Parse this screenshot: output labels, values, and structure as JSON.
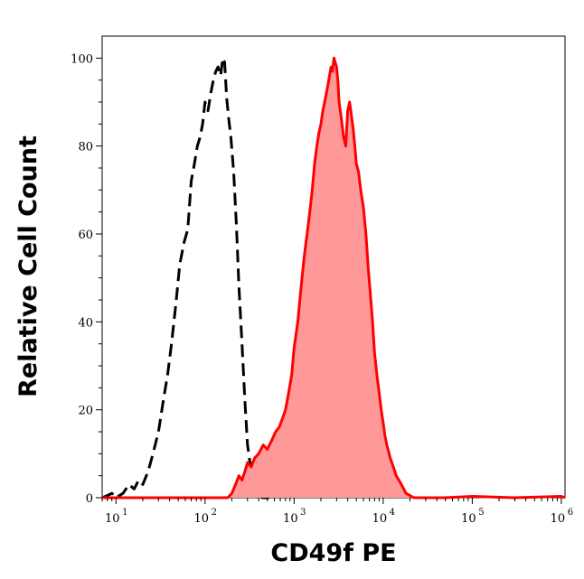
{
  "chart_data": {
    "type": "area",
    "xlabel": "CD49f PE",
    "ylabel": "Relative Cell Count",
    "x_scale": "log",
    "xlim": [
      7,
      1100000
    ],
    "ylim": [
      0,
      105
    ],
    "x_ticks": [
      {
        "value": 10,
        "base": "10",
        "exp": "1"
      },
      {
        "value": 100,
        "base": "10",
        "exp": "2"
      },
      {
        "value": 1000,
        "base": "10",
        "exp": "3"
      },
      {
        "value": 10000,
        "base": "10",
        "exp": "4"
      },
      {
        "value": 100000,
        "base": "10",
        "exp": "5"
      },
      {
        "value": 1000000,
        "base": "10",
        "exp": "6"
      }
    ],
    "y_ticks": [
      {
        "value": 0,
        "label": "0"
      },
      {
        "value": 20,
        "label": "20"
      },
      {
        "value": 40,
        "label": "40"
      },
      {
        "value": 60,
        "label": "60"
      },
      {
        "value": 80,
        "label": "80"
      },
      {
        "value": 100,
        "label": "100"
      }
    ],
    "grid": false,
    "legend": "none",
    "series": [
      {
        "style": "dashed-line",
        "color": "#000000",
        "x": [
          7,
          8,
          9,
          10,
          12,
          14,
          16,
          18,
          20,
          23,
          26,
          30,
          34,
          38,
          42,
          47,
          52,
          58,
          64,
          70,
          76,
          82,
          88,
          94,
          100,
          108,
          116,
          124,
          132,
          140,
          150,
          158,
          166,
          175,
          185,
          195,
          210,
          225,
          240,
          260,
          280,
          300,
          330,
          360,
          400,
          440,
          480,
          550
        ],
        "y": [
          0,
          0.5,
          1,
          0,
          1,
          3,
          2,
          4,
          3,
          6,
          10,
          15,
          22,
          28,
          35,
          44,
          53,
          58,
          61,
          72,
          76,
          80,
          82,
          85,
          90,
          88,
          92,
          95,
          97,
          98,
          96,
          100,
          99,
          91,
          86,
          82,
          74,
          62,
          48,
          35,
          22,
          12,
          6,
          2,
          0.5,
          0,
          0,
          0
        ]
      },
      {
        "style": "filled-area",
        "color": "#ff0000",
        "fill": "#ff9999",
        "x": [
          7,
          100,
          150,
          180,
          200,
          220,
          240,
          260,
          280,
          300,
          330,
          360,
          400,
          450,
          500,
          560,
          620,
          680,
          740,
          800,
          870,
          940,
          1000,
          1100,
          1200,
          1300,
          1400,
          1500,
          1600,
          1700,
          1800,
          1900,
          2000,
          2100,
          2200,
          2300,
          2400,
          2500,
          2600,
          2700,
          2800,
          2900,
          3000,
          3100,
          3200,
          3400,
          3600,
          3800,
          4000,
          4200,
          4400,
          4600,
          4800,
          5000,
          5300,
          5600,
          6000,
          6400,
          6800,
          7200,
          7600,
          8000,
          8500,
          9000,
          9500,
          10000,
          10500,
          11000,
          12000,
          13000,
          14000,
          15000,
          16000,
          17000,
          18000,
          20000,
          22000,
          25000,
          30000,
          50000,
          100000,
          300000,
          1000000,
          1100000
        ],
        "y": [
          0,
          0,
          0,
          0,
          1,
          3,
          5,
          4,
          6,
          8,
          7,
          9,
          10,
          12,
          11,
          13,
          15,
          16,
          18,
          20,
          24,
          28,
          34,
          40,
          48,
          55,
          60,
          65,
          70,
          76,
          80,
          83,
          85,
          88,
          90,
          92,
          94,
          96,
          98,
          97,
          100,
          99,
          98,
          95,
          90,
          86,
          82,
          80,
          88,
          90,
          87,
          84,
          80,
          76,
          74,
          70,
          66,
          60,
          52,
          46,
          40,
          33,
          28,
          24,
          20,
          17,
          14,
          12,
          9,
          7,
          5,
          4,
          3,
          2,
          1,
          0.5,
          0,
          0,
          0,
          0,
          0.3,
          0,
          0.3,
          0
        ]
      }
    ]
  }
}
